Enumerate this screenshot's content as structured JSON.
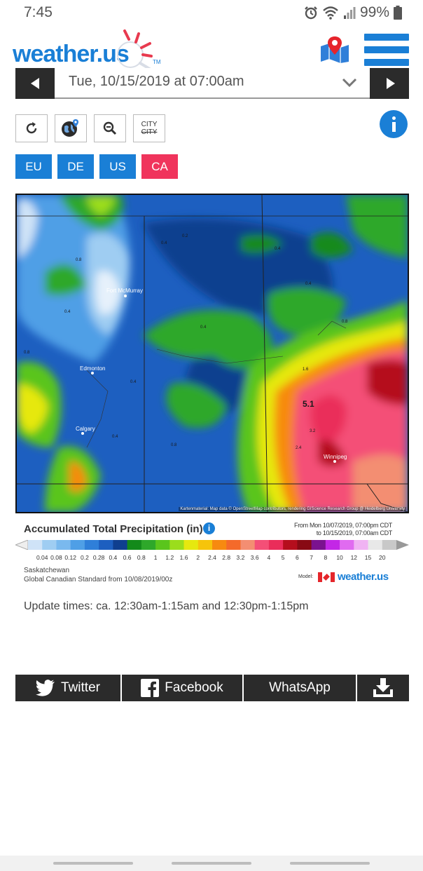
{
  "status_bar": {
    "time": "7:45",
    "battery": "99%"
  },
  "header": {
    "logo_text": "weather.us",
    "logo_tm": "TM"
  },
  "date_selector": {
    "value": "Tue, 10/15/2019 at 07:00am"
  },
  "tools": {
    "city_top": "CITY",
    "city_bottom": "CITY"
  },
  "regions": [
    {
      "label": "EU",
      "active": false
    },
    {
      "label": "DE",
      "active": false
    },
    {
      "label": "US",
      "active": false
    },
    {
      "label": "CA",
      "active": true
    }
  ],
  "map": {
    "cities": [
      "Fort McMurray",
      "Edmonton",
      "Calgary",
      "Winnipeg"
    ],
    "value_labels": [
      "0.2",
      "0.4",
      "0.8",
      "0.4",
      "0.4",
      "0.8",
      "0.4",
      "0.8",
      "0.4",
      "1.6",
      "0.4",
      "5.1",
      "3.2",
      "2.4",
      "0.4",
      "0.8"
    ],
    "attribution": "Kartenmaterial: Map data © OpenStreetMap contributors, rendering GIScience Research Group @ Heidelberg University"
  },
  "legend": {
    "title": "Accumulated Total Precipitation (in)",
    "info": "i",
    "range_from": "From Mon 10/07/2019, 07:00pm CDT",
    "range_to": "to 10/15/2019, 07:00am CDT",
    "ticks": [
      "0.04",
      "0.08",
      "0.12",
      "0.2",
      "0.28",
      "0.4",
      "0.6",
      "0.8",
      "1",
      "1.2",
      "1.6",
      "2",
      "2.4",
      "2.8",
      "3.2",
      "3.6",
      "4",
      "5",
      "6",
      "7",
      "8",
      "10",
      "12",
      "15",
      "20"
    ],
    "colors": [
      "#cfe3f7",
      "#9fcdf2",
      "#7ab9ee",
      "#4f9fe6",
      "#2f7fd9",
      "#1d5fc0",
      "#0f3f8f",
      "#138a1a",
      "#2ea82a",
      "#5ac51c",
      "#9bdd1c",
      "#e6e80f",
      "#f6c40b",
      "#f78a10",
      "#f46a2a",
      "#f38e72",
      "#f44f77",
      "#ea2d5a",
      "#b50e1d",
      "#880a14",
      "#7b128f",
      "#c327e6",
      "#e06bf0",
      "#f0b3f3",
      "#e8e8e8",
      "#c8c8c8"
    ],
    "region": "Saskatchewan",
    "model": "Global Canadian Standard from 10/08/2019/00z",
    "model_label": "Model:",
    "brand": "weather.us"
  },
  "update_times": "Update times: ca. 12:30am-1:15am and 12:30pm-1:15pm",
  "share": {
    "twitter": "Twitter",
    "facebook": "Facebook",
    "whatsapp": "WhatsApp"
  }
}
